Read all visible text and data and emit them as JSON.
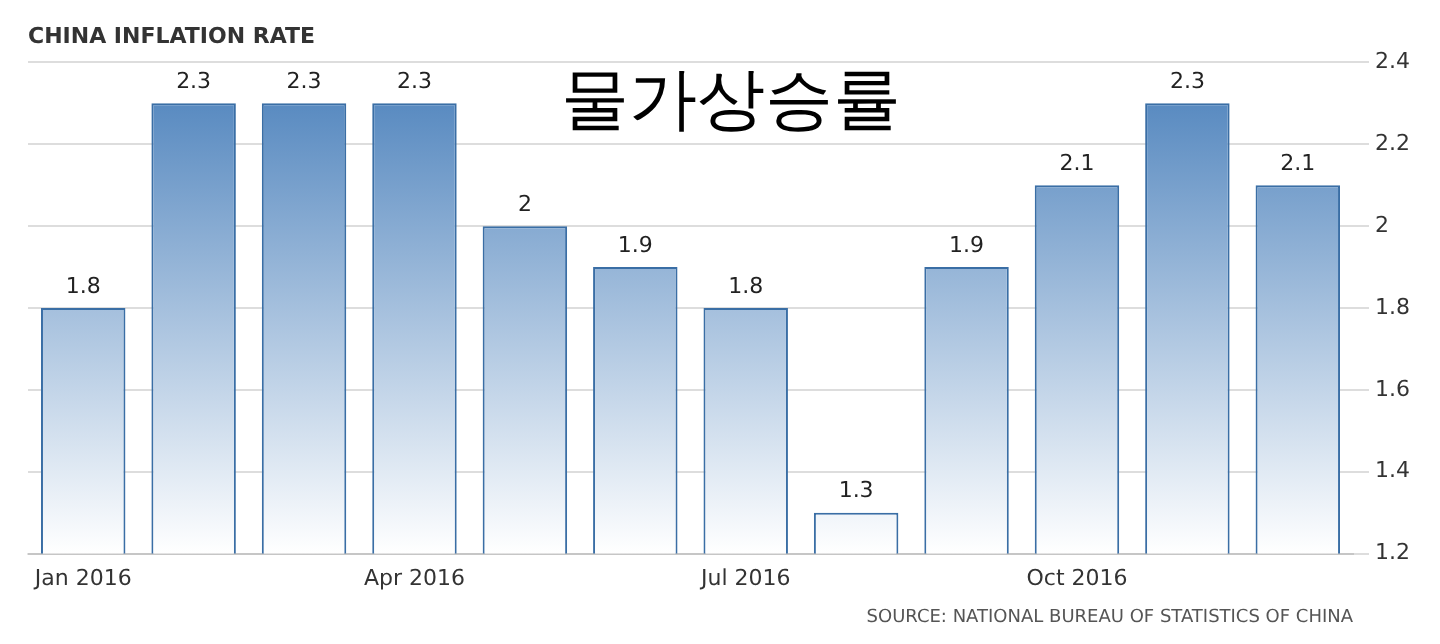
{
  "chart_data": {
    "type": "bar",
    "title": "CHINA INFLATION RATE",
    "categories": [
      "Jan 2016",
      null,
      null,
      "Apr 2016",
      null,
      null,
      "Jul 2016",
      null,
      null,
      "Oct 2016",
      null,
      null
    ],
    "values": [
      1.8,
      2.3,
      2.3,
      2.3,
      2,
      1.9,
      1.8,
      1.3,
      1.9,
      2.1,
      2.3,
      2.1
    ],
    "color": "#4a80bb",
    "ylim": [
      1.2,
      2.4
    ],
    "yticks": [
      1.2,
      1.4,
      1.6,
      1.8,
      2,
      2.2,
      2.4
    ],
    "grid": "y",
    "data_labels": true,
    "annotations": [
      "물가상승률",
      "SOURCE: NATIONAL BUREAU OF STATISTICS OF CHINA"
    ]
  }
}
